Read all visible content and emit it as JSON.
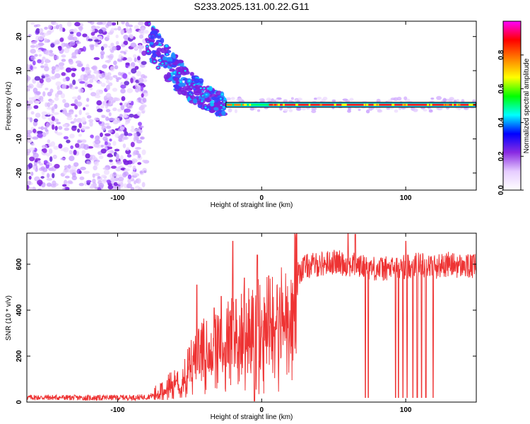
{
  "title": "S233.2025.131.00.22.G11",
  "chart_data": [
    {
      "type": "heatmap",
      "xlabel": "Height of straight line (km)",
      "ylabel": "Frequency (Hz)",
      "xlim": [
        -163,
        149
      ],
      "ylim": [
        -25,
        24.5
      ],
      "xticks": [
        -100,
        0,
        100
      ],
      "yticks": [
        -20,
        -10,
        0,
        10,
        20
      ],
      "colorbar": {
        "label": "Normalized spectral amplitude",
        "range": [
          0,
          1
        ],
        "ticks": [
          "0.0",
          "0.2",
          "0.4",
          "0.6",
          "0.8"
        ],
        "colors": [
          "#ffffff",
          "#e6ccff",
          "#8a2be2",
          "#0000ff",
          "#00ffff",
          "#00ff00",
          "#ffff00",
          "#ff8000",
          "#ff0000",
          "#ff00ff"
        ]
      },
      "features": [
        {
          "name": "noise",
          "x_range": [
            -163,
            -80
          ],
          "freq_range": [
            -25,
            24.5
          ],
          "amplitude": 0.05
        },
        {
          "name": "dispersed_signal",
          "x_range": [
            -80,
            -25
          ],
          "freq_range": [
            -5,
            24
          ],
          "amplitude": 0.25
        },
        {
          "name": "carrier_line",
          "x_range": [
            -25,
            149
          ],
          "freq": 0,
          "amplitude": 0.9
        }
      ]
    },
    {
      "type": "line",
      "xlabel": "Height of straight line (km)",
      "ylabel": "SNR (10 * v/v)",
      "xlim": [
        -163,
        149
      ],
      "ylim": [
        0,
        735
      ],
      "xticks": [
        -100,
        0,
        100
      ],
      "yticks": [
        0,
        200,
        400,
        600
      ],
      "color": "#ee3333",
      "x": [
        -163,
        -140,
        -120,
        -100,
        -90,
        -80,
        -75,
        -70,
        -65,
        -60,
        -55,
        -50,
        -45,
        -40,
        -35,
        -30,
        -25,
        -20,
        -15,
        -10,
        -5,
        0,
        5,
        10,
        15,
        20,
        25,
        30,
        40,
        50,
        60,
        70,
        80,
        90,
        100,
        110,
        120,
        130,
        140,
        149
      ],
      "y": [
        20,
        20,
        18,
        20,
        20,
        22,
        30,
        50,
        80,
        100,
        120,
        170,
        200,
        240,
        250,
        260,
        280,
        300,
        320,
        320,
        340,
        350,
        360,
        360,
        400,
        420,
        560,
        590,
        600,
        610,
        600,
        590,
        580,
        580,
        590,
        600,
        590,
        600,
        590,
        590
      ],
      "spikes_up": [
        [
          -45,
          510
        ],
        [
          -33,
          410
        ],
        [
          -28,
          460
        ],
        [
          -20,
          700
        ],
        [
          -12,
          540
        ],
        [
          -3,
          640
        ],
        [
          5,
          550
        ],
        [
          60,
          735
        ],
        [
          65,
          730
        ],
        [
          100,
          700
        ]
      ],
      "dropouts": [
        [
          -5,
          5
        ],
        [
          72,
          20
        ],
        [
          74,
          20
        ],
        [
          93,
          20
        ],
        [
          95,
          20
        ],
        [
          98,
          20
        ],
        [
          101,
          20
        ],
        [
          105,
          20
        ],
        [
          108,
          20
        ],
        [
          111,
          20
        ],
        [
          114,
          20
        ],
        [
          119,
          20
        ]
      ]
    }
  ]
}
